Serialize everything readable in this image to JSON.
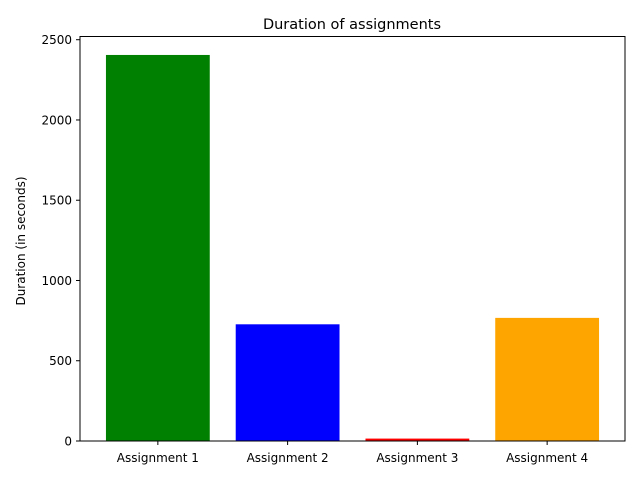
{
  "chart_data": {
    "type": "bar",
    "title": "Duration of assignments",
    "xlabel": "",
    "ylabel": "Duration (in seconds)",
    "categories": [
      "Assignment 1",
      "Assignment 2",
      "Assignment 3",
      "Assignment 4"
    ],
    "values": [
      2405,
      727,
      15,
      767
    ],
    "colors": [
      "#008000",
      "#0000ff",
      "#ff0000",
      "#ffa500"
    ],
    "ylim": [
      0,
      2520
    ],
    "yticks": [
      0,
      500,
      1000,
      1500,
      2000,
      2500
    ],
    "grid": false,
    "legend": "none"
  }
}
